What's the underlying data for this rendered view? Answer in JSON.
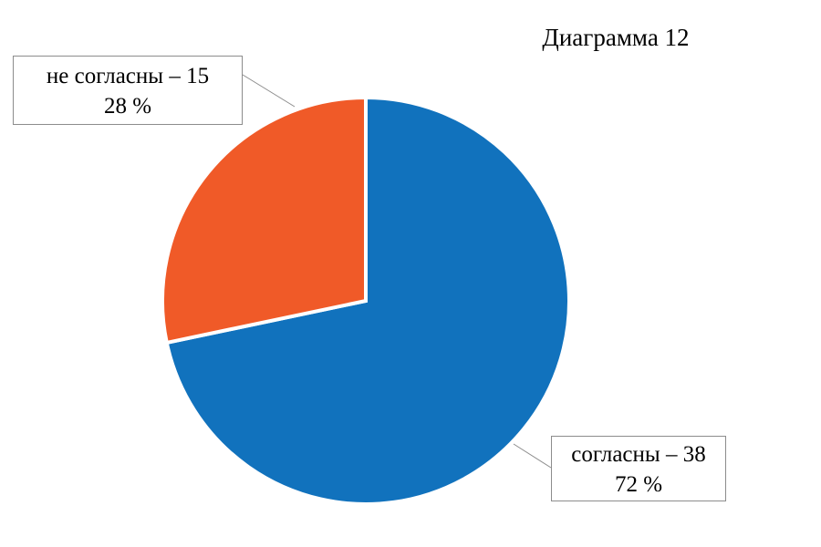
{
  "chart_data": {
    "type": "pie",
    "title": "Диаграмма 12",
    "start_angle_deg": 0,
    "direction": "clockwise",
    "slices": [
      {
        "label": "согласны",
        "value": 38,
        "percent": 72,
        "color": "#1172BD",
        "label_line1": "согласны – 38",
        "label_line2": "72 %"
      },
      {
        "label": "не согласны",
        "value": 15,
        "percent": 28,
        "color": "#F05A28",
        "label_line1": "не согласны – 15",
        "label_line2": "28 %"
      }
    ]
  }
}
